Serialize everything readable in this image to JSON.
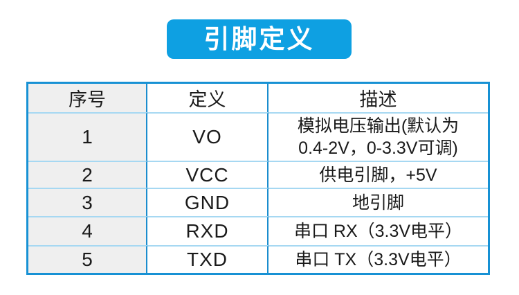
{
  "title": {
    "label": "引脚定义"
  },
  "table": {
    "headers": [
      "序号",
      "定义",
      "描述"
    ],
    "rows": [
      {
        "no": "1",
        "definition": "VO",
        "description": "模拟电压输出(默认为\n0.4-2V，0-3.3V可调)"
      },
      {
        "no": "2",
        "definition": "VCC",
        "description": "供电引脚，+5V"
      },
      {
        "no": "3",
        "definition": "GND",
        "description": "地引脚"
      },
      {
        "no": "4",
        "definition": "RXD",
        "description": "串口 RX（3.3V电平）"
      },
      {
        "no": "5",
        "definition": "TXD",
        "description": "串口 TX（3.3V电平）"
      }
    ]
  },
  "colors": {
    "banner_blue": "#0EA0E2",
    "outer_border_blue": "#1791D4",
    "vertical_line_blue": "#1B8DCE",
    "horizontal_line_light_blue": "#A6D8F2",
    "first_column_gray": "#EFEFEF",
    "text_color": "#1A1A1A",
    "banner_text_color": "#FFFFFF"
  }
}
